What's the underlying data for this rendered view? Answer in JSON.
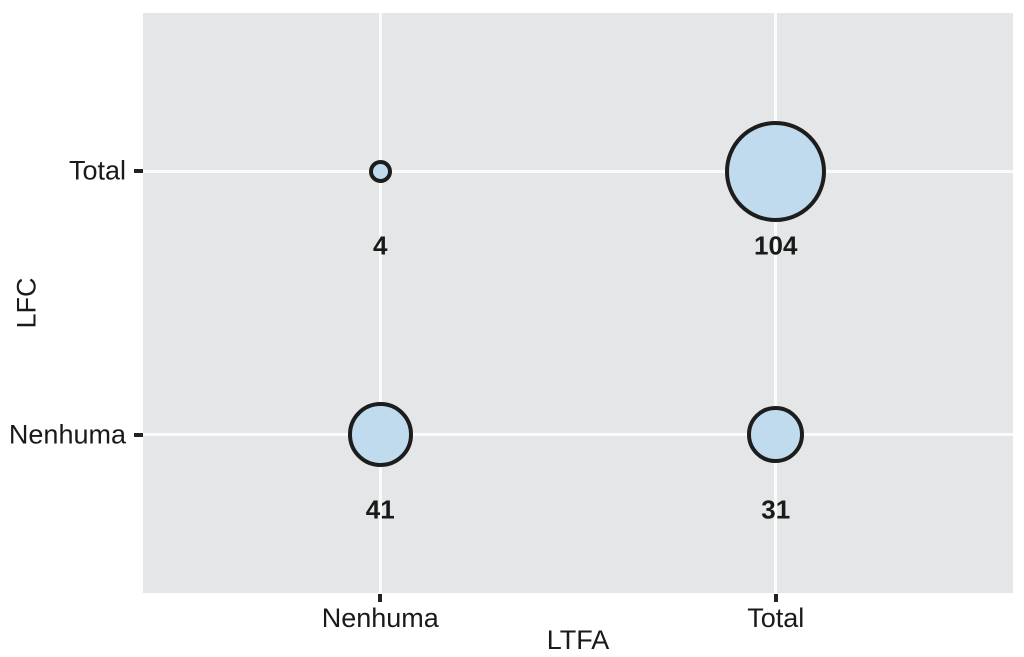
{
  "chart_data": {
    "type": "scatter",
    "subtype": "balloon-bubble-plot",
    "title": "",
    "xlabel": "LTFA",
    "ylabel": "LFC",
    "x_categories": [
      "Nenhuma",
      "Total"
    ],
    "y_categories_bottom_to_top": [
      "Nenhuma",
      "Total"
    ],
    "points": [
      {
        "x": "Nenhuma",
        "y": "Total",
        "value": 4
      },
      {
        "x": "Total",
        "y": "Total",
        "value": 104
      },
      {
        "x": "Nenhuma",
        "y": "Nenhuma",
        "value": 41
      },
      {
        "x": "Total",
        "y": "Nenhuma",
        "value": 31
      }
    ],
    "legend_position": "none",
    "grid": "on",
    "value_labels_shown": true
  },
  "colors": {
    "panel_background": "#e4e6e7",
    "gridline": "#fafbfb",
    "bubble_fill": "#bfdbed",
    "bubble_stroke": "#1d1d1d",
    "tick_mark": "#222222",
    "text": "#1a1a1a"
  }
}
